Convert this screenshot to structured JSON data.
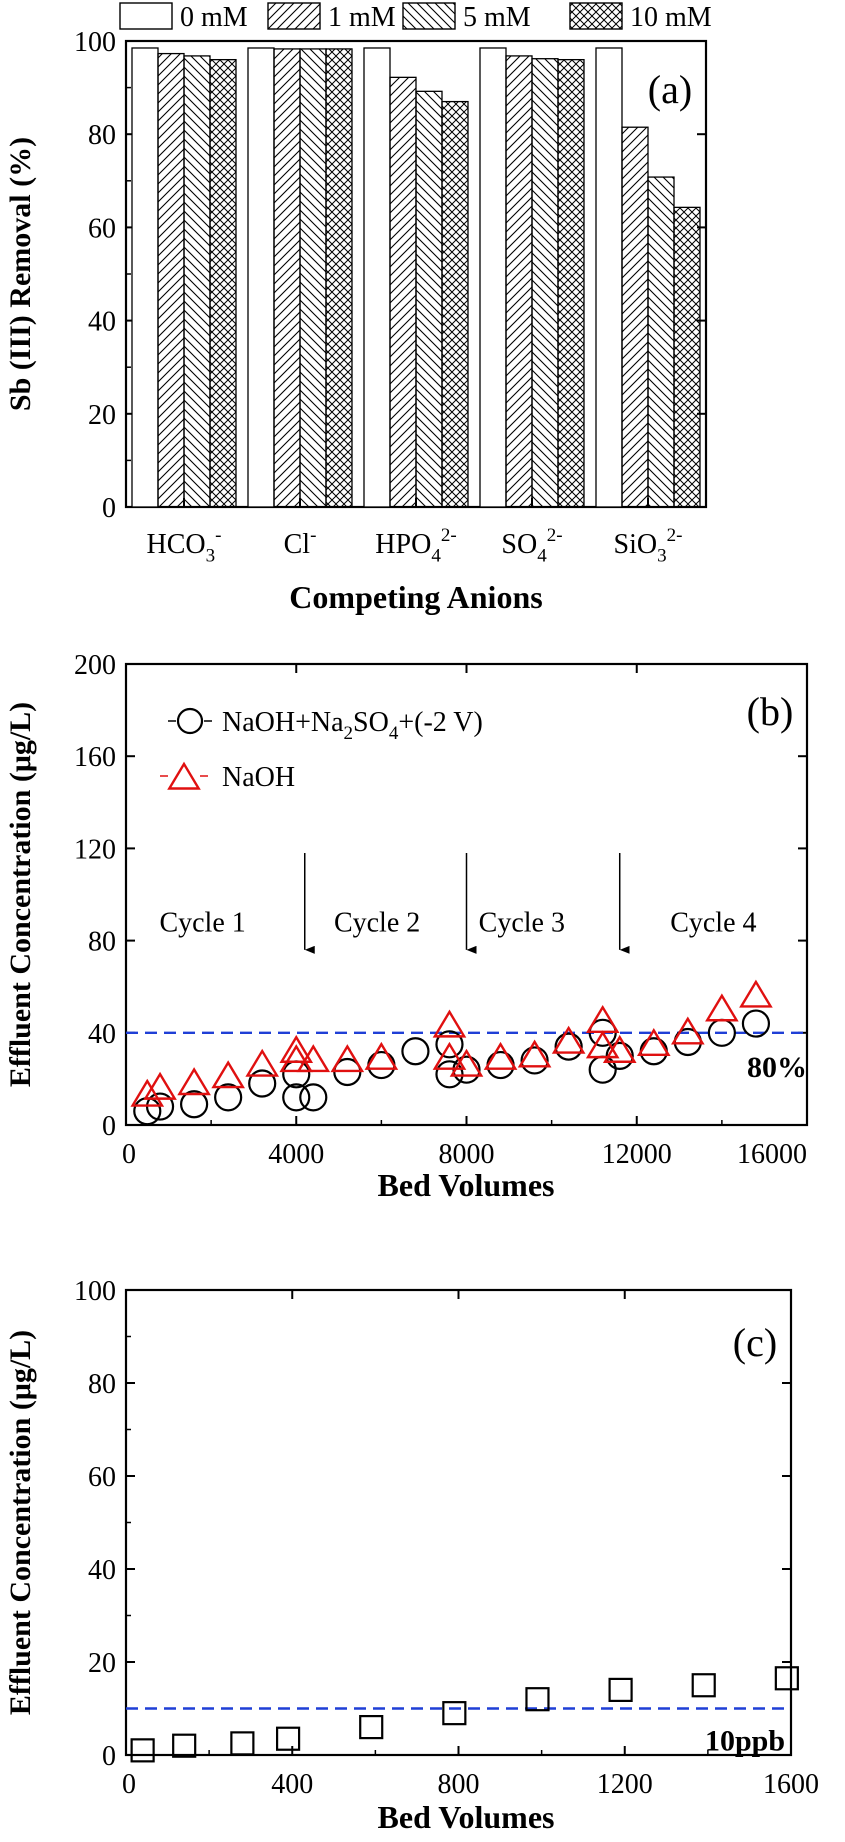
{
  "chart_data": [
    {
      "type": "bar",
      "panel_label": "(a)",
      "xlabel": "Competing Anions",
      "ylabel": "Sb (III) Removal (%)",
      "ylim": [
        0,
        100
      ],
      "yticks": [
        "0",
        "20",
        "40",
        "60",
        "80",
        "100"
      ],
      "categories": [
        {
          "base": "HCO",
          "sub": "3",
          "sup": "-"
        },
        {
          "base": "Cl",
          "sub": "",
          "sup": "-"
        },
        {
          "base": "HPO",
          "sub": "4",
          "sup": "2-"
        },
        {
          "base": "SO",
          "sub": "4",
          "sup": "2-"
        },
        {
          "base": "SiO",
          "sub": "3",
          "sup": "2-"
        }
      ],
      "legend_position": "top",
      "series": [
        {
          "name": "0 mM",
          "pattern": "open",
          "values": [
            98.5,
            98.5,
            98.5,
            98.5,
            98.5
          ]
        },
        {
          "name": "1 mM",
          "pattern": "diagonal-forward",
          "values": [
            97.3,
            98.3,
            92.2,
            96.8,
            81.5
          ]
        },
        {
          "name": "5 mM",
          "pattern": "diagonal-back",
          "values": [
            96.8,
            98.3,
            89.2,
            96.2,
            70.8
          ]
        },
        {
          "name": "10 mM",
          "pattern": "crosshatch",
          "values": [
            96.0,
            98.3,
            87.0,
            96.0,
            64.3
          ]
        }
      ]
    },
    {
      "type": "scatter",
      "panel_label": "(b)",
      "xlabel": "Bed Volumes",
      "ylabel": "Effluent Concentration (μg/L)",
      "xlim": [
        0,
        16000
      ],
      "ylim": [
        0,
        200
      ],
      "xticks": [
        "0",
        "4000",
        "8000",
        "12000",
        "16000"
      ],
      "yticks": [
        "0",
        "40",
        "80",
        "120",
        "160",
        "200"
      ],
      "threshold": {
        "y": 40,
        "label": "80%",
        "color": "#1f3fd6"
      },
      "legend_position": "top-left",
      "series": [
        {
          "name": "NaOH+Na2SO4+(-2 V)",
          "legend_parts": {
            "a": "NaOH+Na",
            "sub": "2",
            "b": "SO",
            "sub2": "4",
            "c": "+(-2 V)"
          },
          "marker": "circle",
          "color": "#000000",
          "points": [
            [
              500,
              6
            ],
            [
              800,
              8
            ],
            [
              1600,
              9
            ],
            [
              2400,
              12
            ],
            [
              3200,
              18
            ],
            [
              4000,
              12
            ],
            [
              4000,
              22
            ],
            [
              4400,
              12
            ],
            [
              5200,
              23
            ],
            [
              6000,
              26
            ],
            [
              6800,
              32
            ],
            [
              7600,
              22
            ],
            [
              7600,
              35
            ],
            [
              8000,
              24
            ],
            [
              8800,
              26
            ],
            [
              9600,
              28
            ],
            [
              10400,
              34
            ],
            [
              11200,
              24
            ],
            [
              11200,
              40
            ],
            [
              11600,
              30
            ],
            [
              12400,
              32
            ],
            [
              13200,
              36
            ],
            [
              14000,
              40
            ],
            [
              14800,
              44
            ]
          ]
        },
        {
          "name": "NaOH",
          "marker": "triangle",
          "color": "#e01010",
          "points": [
            [
              500,
              13
            ],
            [
              800,
              16
            ],
            [
              1600,
              18
            ],
            [
              2400,
              21
            ],
            [
              3200,
              26
            ],
            [
              4000,
              32
            ],
            [
              4000,
              28
            ],
            [
              4400,
              28
            ],
            [
              5200,
              28
            ],
            [
              6000,
              29
            ],
            [
              7600,
              43
            ],
            [
              7600,
              29
            ],
            [
              8000,
              26
            ],
            [
              8800,
              29
            ],
            [
              9600,
              30
            ],
            [
              10400,
              36
            ],
            [
              11200,
              45
            ],
            [
              11200,
              34
            ],
            [
              11600,
              32
            ],
            [
              12400,
              35
            ],
            [
              13200,
              40
            ],
            [
              14000,
              50
            ],
            [
              14800,
              56
            ]
          ]
        }
      ],
      "annotations": [
        {
          "text": "Cycle 1",
          "x": 1800,
          "y": 84
        },
        {
          "text": "Cycle 2",
          "x": 5900,
          "y": 84
        },
        {
          "text": "Cycle 3",
          "x": 9300,
          "y": 84
        },
        {
          "text": "Cycle 4",
          "x": 13800,
          "y": 84
        }
      ],
      "arrows": [
        {
          "x": 4200,
          "y_from": 118,
          "y_to": 76
        },
        {
          "x": 8000,
          "y_from": 118,
          "y_to": 76
        },
        {
          "x": 11600,
          "y_from": 118,
          "y_to": 76
        }
      ]
    },
    {
      "type": "scatter",
      "panel_label": "(c)",
      "xlabel": "Bed Volumes",
      "ylabel": "Effluent Concentration (μg/L)",
      "xlim": [
        0,
        1600
      ],
      "ylim": [
        0,
        100
      ],
      "xticks": [
        "0",
        "400",
        "800",
        "1200",
        "1600"
      ],
      "yticks": [
        "0",
        "20",
        "40",
        "60",
        "80",
        "100"
      ],
      "threshold": {
        "y": 10,
        "label": "10ppb",
        "color": "#1f3fd6"
      },
      "series": [
        {
          "marker": "square",
          "color": "#000000",
          "points": [
            [
              40,
              1
            ],
            [
              140,
              2
            ],
            [
              280,
              2.5
            ],
            [
              390,
              3.5
            ],
            [
              590,
              6
            ],
            [
              790,
              9
            ],
            [
              990,
              12
            ],
            [
              1190,
              14
            ],
            [
              1390,
              15
            ],
            [
              1590,
              16.5
            ]
          ]
        }
      ]
    }
  ]
}
